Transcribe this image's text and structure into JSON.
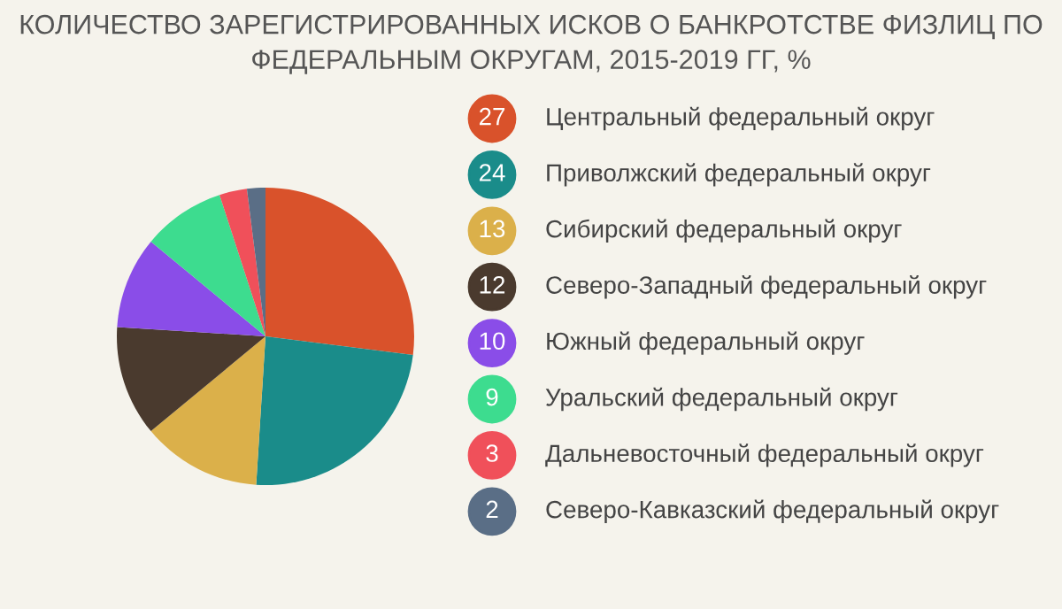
{
  "chart_data": {
    "type": "pie",
    "title": "КОЛИЧЕСТВО ЗАРЕГИСТРИРОВАННЫХ ИСКОВ О БАНКРОТСТВЕ ФИЗЛИЦ ПО\nФЕДЕРАЛЬНЫМ ОКРУГАМ, 2015-2019 ГГ, %",
    "categories": [
      "Центральный федеральный округ",
      "Приволжский федеральный округ",
      "Сибирский федеральный округ",
      "Северо-Западный федеральный округ",
      "Южный федеральный округ",
      "Уральский федеральный округ",
      "Дальневосточный федеральный округ",
      "Северо-Кавказский федеральный округ"
    ],
    "values": [
      27,
      24,
      13,
      12,
      10,
      9,
      3,
      2
    ],
    "colors": [
      "#d9522b",
      "#1a8c8a",
      "#dbb04a",
      "#4a3a2e",
      "#8a4de8",
      "#3ddc8f",
      "#f0505a",
      "#5a6e86"
    ],
    "data_labels": true,
    "legend": "right"
  }
}
